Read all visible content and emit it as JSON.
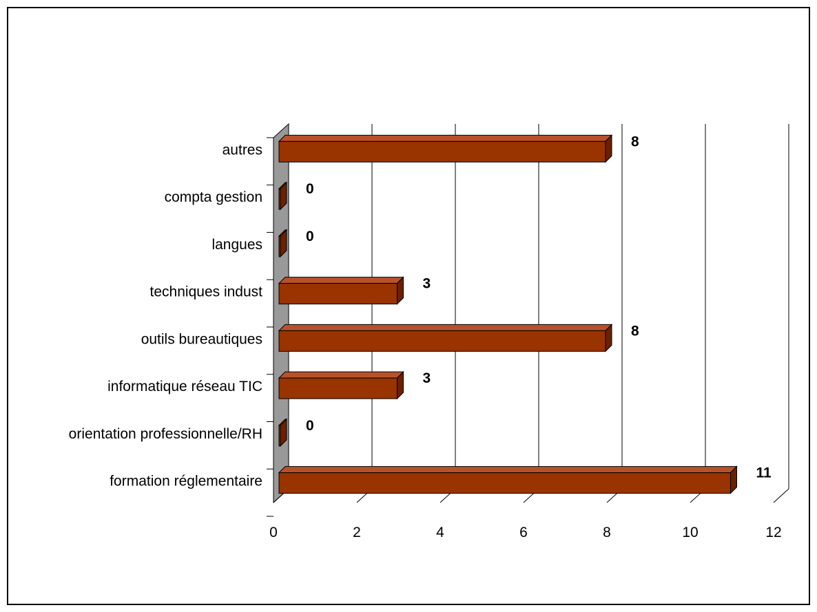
{
  "chart_data": {
    "type": "bar",
    "orientation": "horizontal",
    "three_d": true,
    "categories": [
      "formation réglementaire",
      "orientation professionnelle/RH",
      "informatique réseau TIC",
      "outils bureautiques",
      "techniques indust",
      "langues",
      "compta gestion",
      "autres"
    ],
    "values": [
      11,
      0,
      3,
      8,
      3,
      0,
      0,
      8
    ],
    "data_labels": [
      "11",
      "0",
      "3",
      "8",
      "3",
      "0",
      "0",
      "8"
    ],
    "xlim": [
      0,
      12
    ],
    "x_ticks": [
      0,
      2,
      4,
      6,
      8,
      10,
      12
    ],
    "x_tick_labels": [
      "0",
      "2",
      "4",
      "6",
      "8",
      "10",
      "12"
    ],
    "grid": true,
    "legend": "none",
    "colors": {
      "bar_front": "#993300",
      "bar_top": "#b8512a",
      "bar_side": "#6b2000",
      "wall": "#999999",
      "gridline": "#000000"
    }
  }
}
